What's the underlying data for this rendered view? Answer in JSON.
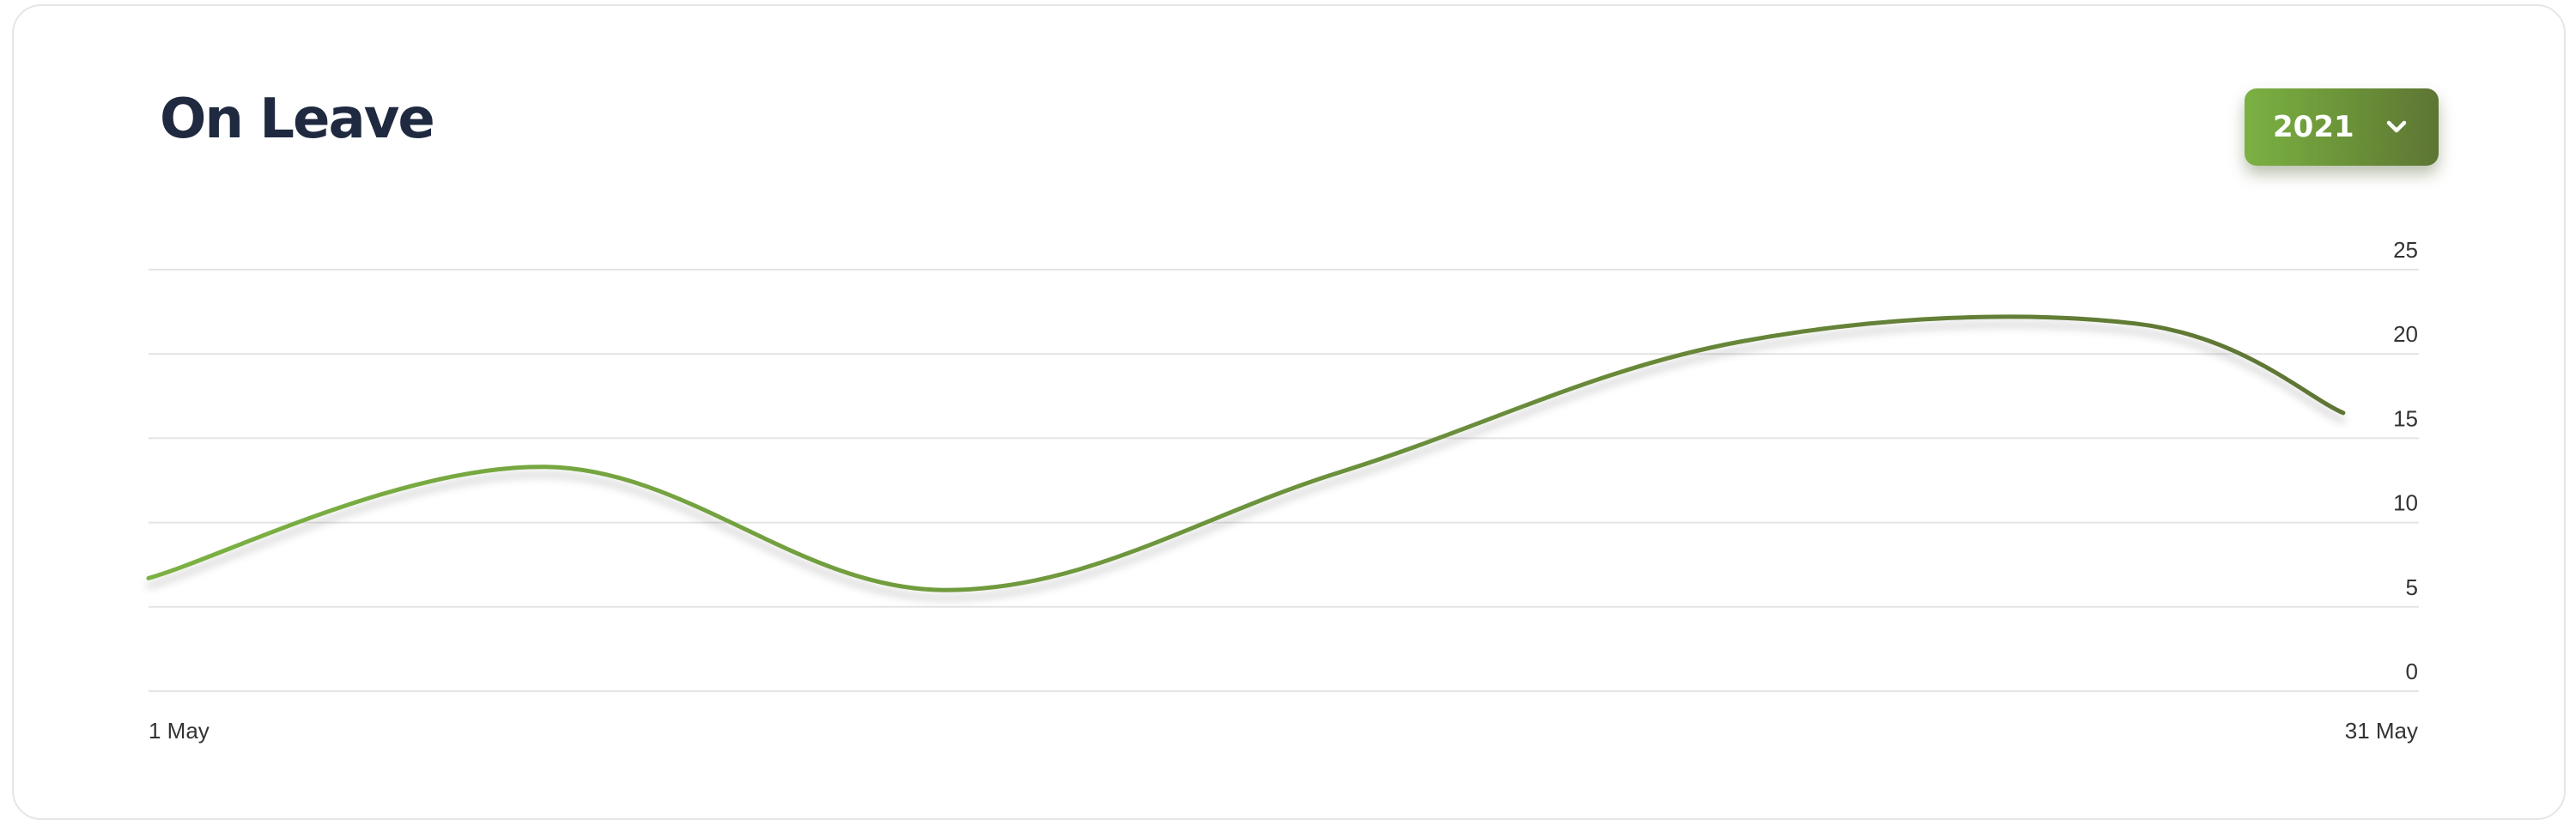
{
  "card": {
    "title": "On Leave",
    "year_select": {
      "value": "2021",
      "icon": "chevron-down-icon"
    }
  },
  "colors": {
    "title": "#1f2940",
    "line_start": "#7bb143",
    "line_end": "#5e7534",
    "grid": "#e4e4e4",
    "button_start": "#7bb143",
    "button_end": "#5e7534"
  },
  "chart_data": {
    "type": "line",
    "title": "On Leave",
    "x": [
      1,
      6.25,
      11.5,
      16.75,
      22,
      27.25,
      30
    ],
    "y": [
      6.7,
      13.3,
      6.0,
      13.0,
      20.7,
      21.8,
      16.5
    ],
    "x_tick_labels": [
      "1 May",
      "31 May"
    ],
    "y_ticks": [
      "0",
      "5",
      "10",
      "15",
      "20",
      "25"
    ],
    "ylim": [
      0,
      25
    ],
    "xlim": [
      1,
      31
    ],
    "grid": true,
    "y_axis_position": "right",
    "smooth": true
  }
}
